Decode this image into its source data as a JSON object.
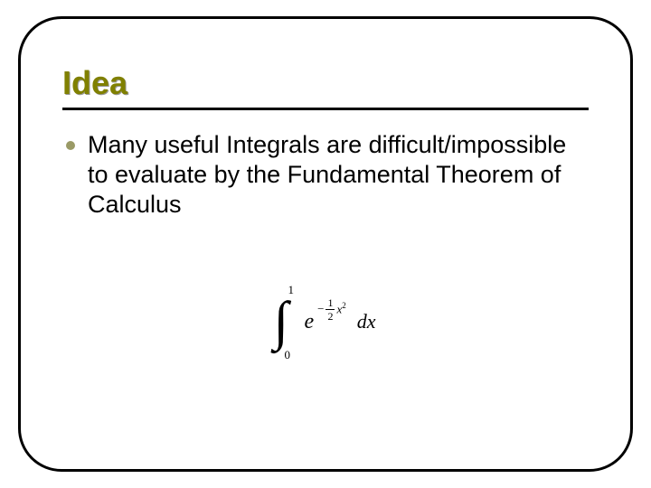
{
  "slide": {
    "title": "Idea",
    "title_color": "#808000",
    "title_fontsize": 36,
    "rule_color": "#000000",
    "frame_border_color": "#000000",
    "frame_border_radius": 48,
    "background_color": "#ffffff",
    "bullet_color": "#9a9a66",
    "body_text": "Many useful Integrals are difficult/impossible to evaluate by the Fundamental Theorem of Calculus",
    "body_fontsize": 27,
    "formula": {
      "integral_lower": "0",
      "integral_upper": "1",
      "base": "e",
      "exponent_minus": "−",
      "exponent_numerator": "1",
      "exponent_denominator": "2",
      "exponent_var": "x",
      "exponent_power": "2",
      "dx": "dx",
      "font_family": "Times New Roman",
      "color": "#000000"
    }
  }
}
